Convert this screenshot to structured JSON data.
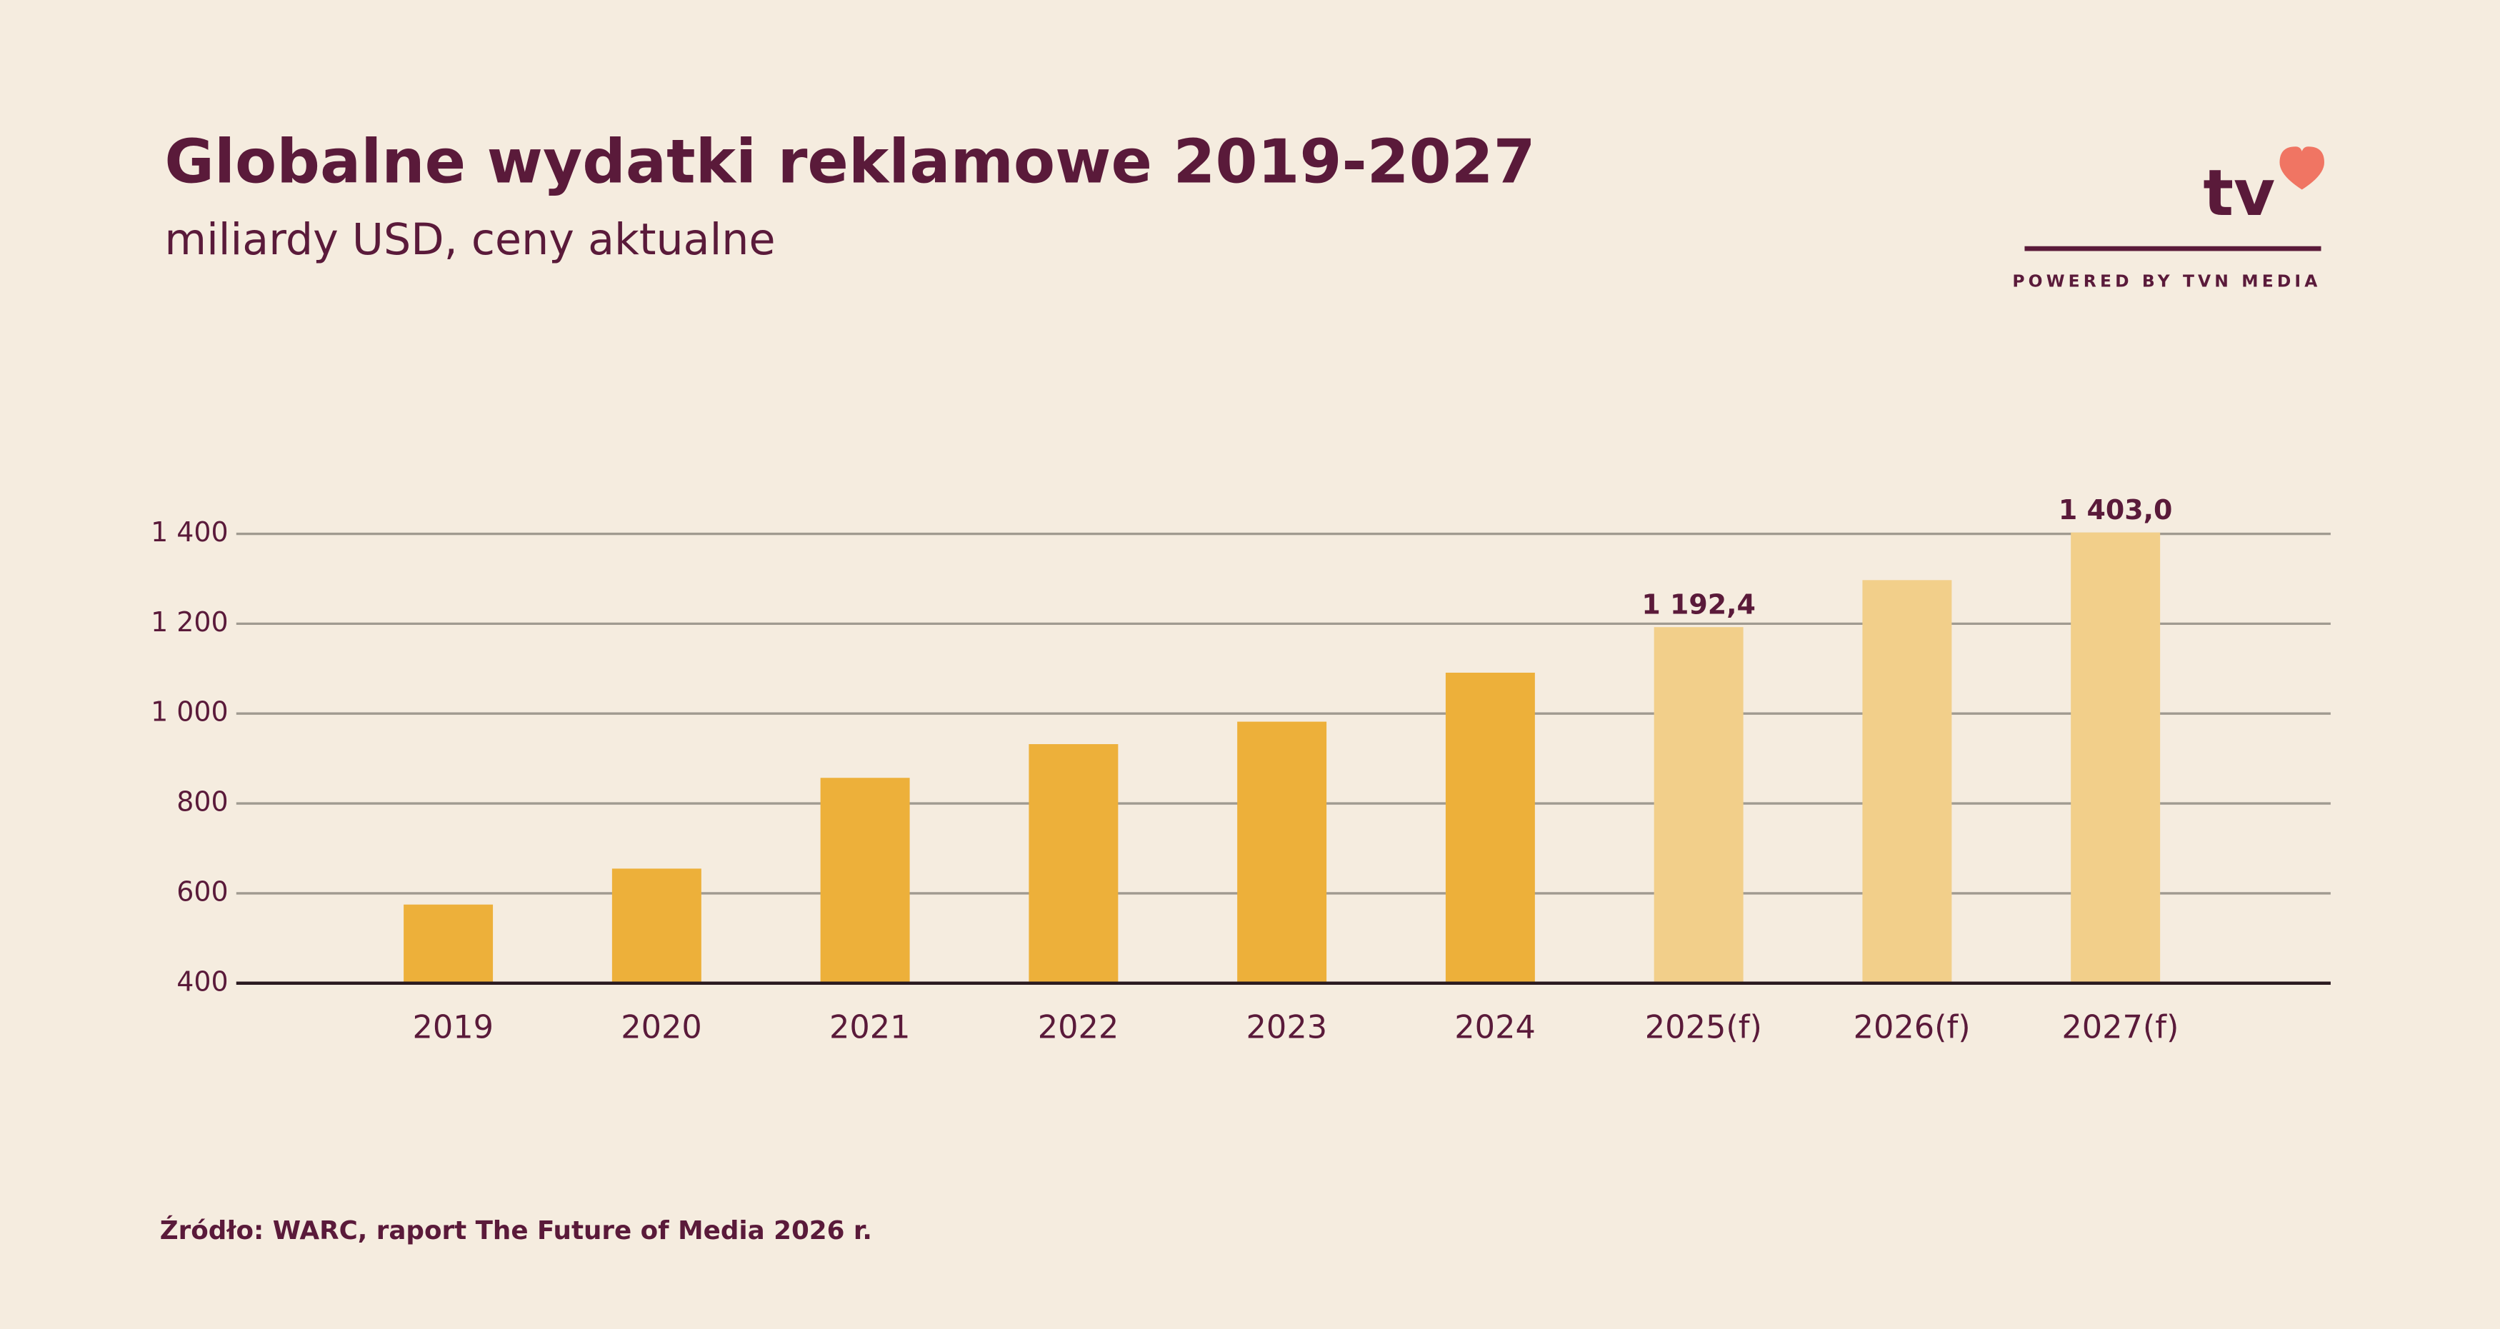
{
  "chart_data": {
    "type": "bar",
    "title": "Globalne wydatki reklamowe 2019-2027",
    "subtitle": "miliardy USD, ceny aktualne",
    "source": "Źródło: WARC, raport The Future of Media 2026 r.",
    "logo": {
      "text": "tv",
      "tagline": "POWERED BY TVN MEDIA"
    },
    "categories": [
      "2019",
      "2020",
      "2021",
      "2022",
      "2023",
      "2024",
      "2025(f)",
      "2026(f)",
      "2027(f)"
    ],
    "values": [
      575,
      655,
      857,
      932,
      982,
      1091,
      1192.4,
      1297,
      1403.0
    ],
    "value_labels": [
      null,
      null,
      null,
      null,
      null,
      null,
      "1 192,4",
      null,
      "1 403,0"
    ],
    "colors": [
      "#edb03a",
      "#edb03a",
      "#edb03a",
      "#edb03a",
      "#edb03a",
      "#edb03a",
      "#f2cf8a",
      "#f2cf8a",
      "#f2cf8a"
    ],
    "ylim": [
      400,
      1400
    ],
    "yticks": [
      400,
      600,
      800,
      {
        "value": 1000,
        "label": "1 000"
      },
      {
        "value": 1200,
        "label": "1 200"
      },
      {
        "value": 1400,
        "label": "1 400"
      }
    ],
    "grid": true
  }
}
